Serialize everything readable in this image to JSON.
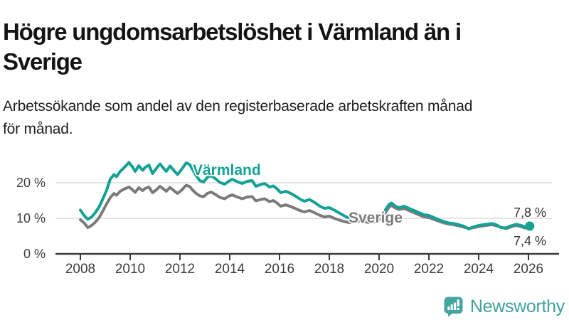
{
  "header": {
    "title_lines": [
      "Högre ungdomsarbetslöshet i Värmland än i",
      "Sverige"
    ],
    "subtitle_lines": [
      "Arbetssökande som andel av den registerbaserade arbetskraften månad",
      "för månad."
    ]
  },
  "chart_data": {
    "type": "line",
    "unit": "%",
    "x_axis": {
      "range": [
        2008,
        2026.2
      ],
      "ticks": [
        2008,
        2010,
        2012,
        2014,
        2016,
        2018,
        2020,
        2022,
        2024,
        2026
      ]
    },
    "y_axis": {
      "range": [
        0,
        27
      ],
      "gridlines": [
        10,
        20
      ],
      "ticks": [
        {
          "value": 20,
          "label": "20 %"
        },
        {
          "value": 10,
          "label": "10 %"
        },
        {
          "value": 0,
          "label": "0 %"
        }
      ]
    },
    "colors": {
      "axis": "#3a3a3a",
      "gridline": "#dcdcdc"
    },
    "series": [
      {
        "name": "Värmland",
        "color": "#13a295",
        "end_label": "7,8 %",
        "end_value": 7.8,
        "points": [
          [
            2008.0,
            12.3
          ],
          [
            2008.15,
            10.8
          ],
          [
            2008.3,
            9.7
          ],
          [
            2008.45,
            10.4
          ],
          [
            2008.6,
            11.6
          ],
          [
            2008.75,
            13.2
          ],
          [
            2008.9,
            15.4
          ],
          [
            2009.05,
            17.8
          ],
          [
            2009.2,
            21.0
          ],
          [
            2009.35,
            22.3
          ],
          [
            2009.45,
            21.7
          ],
          [
            2009.6,
            23.2
          ],
          [
            2009.75,
            24.2
          ],
          [
            2009.95,
            25.7
          ],
          [
            2010.1,
            24.4
          ],
          [
            2010.2,
            23.2
          ],
          [
            2010.35,
            24.8
          ],
          [
            2010.5,
            23.5
          ],
          [
            2010.6,
            24.3
          ],
          [
            2010.75,
            25.0
          ],
          [
            2010.9,
            22.6
          ],
          [
            2011.05,
            24.0
          ],
          [
            2011.2,
            25.3
          ],
          [
            2011.35,
            24.0
          ],
          [
            2011.45,
            23.2
          ],
          [
            2011.6,
            24.7
          ],
          [
            2011.75,
            23.5
          ],
          [
            2011.9,
            22.3
          ],
          [
            2012.05,
            23.6
          ],
          [
            2012.25,
            25.6
          ],
          [
            2012.4,
            25.1
          ],
          [
            2012.5,
            23.8
          ],
          [
            2012.65,
            22.0
          ],
          [
            2012.8,
            20.6
          ],
          [
            2012.95,
            20.2
          ],
          [
            2013.1,
            21.5
          ],
          [
            2013.25,
            22.0
          ],
          [
            2013.45,
            21.0
          ],
          [
            2013.6,
            20.1
          ],
          [
            2013.8,
            19.6
          ],
          [
            2013.95,
            20.4
          ],
          [
            2014.1,
            21.0
          ],
          [
            2014.3,
            20.3
          ],
          [
            2014.5,
            19.8
          ],
          [
            2014.7,
            20.4
          ],
          [
            2014.9,
            20.6
          ],
          [
            2015.05,
            19.0
          ],
          [
            2015.25,
            19.5
          ],
          [
            2015.4,
            19.8
          ],
          [
            2015.6,
            18.8
          ],
          [
            2015.75,
            19.1
          ],
          [
            2015.9,
            18.3
          ],
          [
            2016.05,
            17.2
          ],
          [
            2016.25,
            17.6
          ],
          [
            2016.45,
            17.0
          ],
          [
            2016.65,
            16.2
          ],
          [
            2016.85,
            15.3
          ],
          [
            2017.0,
            14.8
          ],
          [
            2017.2,
            15.3
          ],
          [
            2017.4,
            14.5
          ],
          [
            2017.6,
            13.5
          ],
          [
            2017.8,
            12.8
          ],
          [
            2018.0,
            13.0
          ],
          [
            2018.2,
            12.3
          ],
          [
            2018.4,
            11.5
          ],
          [
            2018.6,
            10.7
          ],
          [
            2018.8,
            10.0
          ],
          [
            2019.0,
            9.6
          ],
          [
            2019.2,
            10.1
          ],
          [
            2019.4,
            9.8
          ],
          [
            2019.6,
            9.4
          ],
          [
            2019.8,
            9.6
          ],
          [
            2020.0,
            10.2
          ],
          [
            2020.2,
            11.8
          ],
          [
            2020.4,
            13.9
          ],
          [
            2020.5,
            14.3
          ],
          [
            2020.65,
            13.4
          ],
          [
            2020.8,
            13.0
          ],
          [
            2021.0,
            13.4
          ],
          [
            2021.2,
            12.8
          ],
          [
            2021.4,
            12.2
          ],
          [
            2021.6,
            11.6
          ],
          [
            2021.8,
            11.0
          ],
          [
            2022.0,
            10.8
          ],
          [
            2022.2,
            10.2
          ],
          [
            2022.4,
            9.6
          ],
          [
            2022.6,
            9.1
          ],
          [
            2022.8,
            8.7
          ],
          [
            2023.0,
            8.5
          ],
          [
            2023.2,
            8.2
          ],
          [
            2023.4,
            7.8
          ],
          [
            2023.6,
            7.0
          ],
          [
            2023.8,
            7.6
          ],
          [
            2024.0,
            8.0
          ],
          [
            2024.2,
            8.2
          ],
          [
            2024.4,
            8.4
          ],
          [
            2024.55,
            8.5
          ],
          [
            2024.7,
            8.2
          ],
          [
            2024.9,
            7.4
          ],
          [
            2025.1,
            7.3
          ],
          [
            2025.3,
            7.9
          ],
          [
            2025.5,
            8.3
          ],
          [
            2025.7,
            8.0
          ],
          [
            2025.85,
            7.6
          ],
          [
            2026.05,
            7.8
          ]
        ]
      },
      {
        "name": "Sverige",
        "color": "#7b7b7e",
        "end_label": "7,4 %",
        "end_value": 7.4,
        "points": [
          [
            2008.0,
            9.6
          ],
          [
            2008.15,
            8.7
          ],
          [
            2008.3,
            7.4
          ],
          [
            2008.45,
            8.0
          ],
          [
            2008.6,
            8.9
          ],
          [
            2008.75,
            10.2
          ],
          [
            2008.9,
            12.0
          ],
          [
            2009.05,
            14.0
          ],
          [
            2009.2,
            15.8
          ],
          [
            2009.35,
            17.0
          ],
          [
            2009.45,
            16.5
          ],
          [
            2009.6,
            17.6
          ],
          [
            2009.75,
            18.2
          ],
          [
            2009.95,
            18.8
          ],
          [
            2010.1,
            18.0
          ],
          [
            2010.2,
            17.3
          ],
          [
            2010.35,
            18.6
          ],
          [
            2010.5,
            17.8
          ],
          [
            2010.6,
            18.4
          ],
          [
            2010.75,
            18.8
          ],
          [
            2010.9,
            17.2
          ],
          [
            2011.05,
            18.0
          ],
          [
            2011.2,
            19.0
          ],
          [
            2011.35,
            18.2
          ],
          [
            2011.45,
            17.6
          ],
          [
            2011.6,
            18.7
          ],
          [
            2011.75,
            17.8
          ],
          [
            2011.9,
            17.0
          ],
          [
            2012.05,
            17.8
          ],
          [
            2012.25,
            19.3
          ],
          [
            2012.4,
            18.9
          ],
          [
            2012.5,
            18.0
          ],
          [
            2012.65,
            17.0
          ],
          [
            2012.8,
            16.3
          ],
          [
            2012.95,
            16.1
          ],
          [
            2013.1,
            17.0
          ],
          [
            2013.25,
            17.4
          ],
          [
            2013.45,
            16.6
          ],
          [
            2013.6,
            15.9
          ],
          [
            2013.8,
            15.5
          ],
          [
            2013.95,
            16.2
          ],
          [
            2014.1,
            16.6
          ],
          [
            2014.3,
            16.0
          ],
          [
            2014.5,
            15.5
          ],
          [
            2014.7,
            16.0
          ],
          [
            2014.9,
            16.1
          ],
          [
            2015.05,
            14.9
          ],
          [
            2015.25,
            15.3
          ],
          [
            2015.4,
            15.5
          ],
          [
            2015.6,
            14.7
          ],
          [
            2015.75,
            15.0
          ],
          [
            2015.9,
            14.3
          ],
          [
            2016.05,
            13.4
          ],
          [
            2016.25,
            13.8
          ],
          [
            2016.45,
            13.3
          ],
          [
            2016.65,
            12.7
          ],
          [
            2016.85,
            12.1
          ],
          [
            2017.0,
            11.8
          ],
          [
            2017.2,
            12.2
          ],
          [
            2017.4,
            11.6
          ],
          [
            2017.6,
            10.9
          ],
          [
            2017.8,
            10.4
          ],
          [
            2018.0,
            10.6
          ],
          [
            2018.2,
            10.0
          ],
          [
            2018.4,
            9.5
          ],
          [
            2018.6,
            9.1
          ],
          [
            2018.8,
            8.8
          ],
          [
            2019.0,
            8.9
          ],
          [
            2019.2,
            9.3
          ],
          [
            2019.4,
            9.1
          ],
          [
            2019.6,
            8.8
          ],
          [
            2019.8,
            9.0
          ],
          [
            2020.0,
            9.5
          ],
          [
            2020.2,
            11.0
          ],
          [
            2020.4,
            13.2
          ],
          [
            2020.5,
            13.6
          ],
          [
            2020.65,
            12.9
          ],
          [
            2020.8,
            12.5
          ],
          [
            2021.0,
            12.8
          ],
          [
            2021.2,
            12.2
          ],
          [
            2021.4,
            11.6
          ],
          [
            2021.6,
            11.0
          ],
          [
            2021.8,
            10.4
          ],
          [
            2022.0,
            10.2
          ],
          [
            2022.2,
            9.7
          ],
          [
            2022.4,
            9.2
          ],
          [
            2022.6,
            8.7
          ],
          [
            2022.8,
            8.4
          ],
          [
            2023.0,
            8.2
          ],
          [
            2023.2,
            7.9
          ],
          [
            2023.4,
            7.5
          ],
          [
            2023.6,
            7.2
          ],
          [
            2023.8,
            7.4
          ],
          [
            2024.0,
            7.7
          ],
          [
            2024.2,
            7.9
          ],
          [
            2024.4,
            8.1
          ],
          [
            2024.55,
            8.2
          ],
          [
            2024.7,
            7.9
          ],
          [
            2024.9,
            7.5
          ],
          [
            2025.1,
            7.1
          ],
          [
            2025.3,
            7.6
          ],
          [
            2025.5,
            8.0
          ],
          [
            2025.7,
            7.7
          ],
          [
            2025.85,
            7.3
          ],
          [
            2026.05,
            7.4
          ]
        ]
      }
    ]
  },
  "footer": {
    "brand": "Newsworthy",
    "logo_color": "#46a4a0",
    "logo_icon": "bar-chart-speech-bubble"
  }
}
